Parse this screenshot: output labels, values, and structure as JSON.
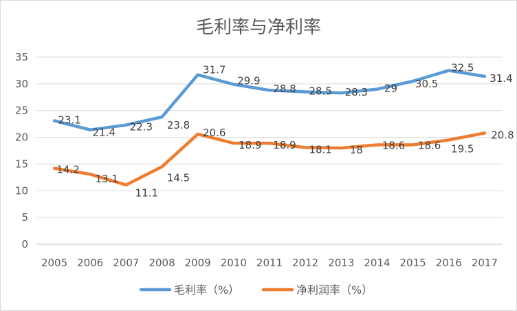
{
  "chart_data": {
    "type": "line",
    "title": "毛利率与净利率",
    "categories": [
      "2005",
      "2006",
      "2007",
      "2008",
      "2009",
      "2010",
      "2011",
      "2012",
      "2013",
      "2014",
      "2015",
      "2016",
      "2017"
    ],
    "ylim": [
      0,
      35
    ],
    "yticks": [
      0,
      5,
      10,
      15,
      20,
      25,
      30,
      35
    ],
    "grid": true,
    "legend_position": "bottom",
    "series": [
      {
        "name": "毛利率（%）",
        "color": "#5b9bd5",
        "values": [
          23.1,
          21.4,
          22.3,
          23.8,
          31.7,
          29.9,
          28.8,
          28.5,
          28.3,
          29,
          30.5,
          32.5,
          31.4
        ]
      },
      {
        "name": "净利润率（%）",
        "color": "#ed7d31",
        "values": [
          14.2,
          13.1,
          11.1,
          14.5,
          20.6,
          18.9,
          18.9,
          18.1,
          18,
          18.6,
          18.6,
          19.5,
          20.8
        ]
      }
    ]
  }
}
